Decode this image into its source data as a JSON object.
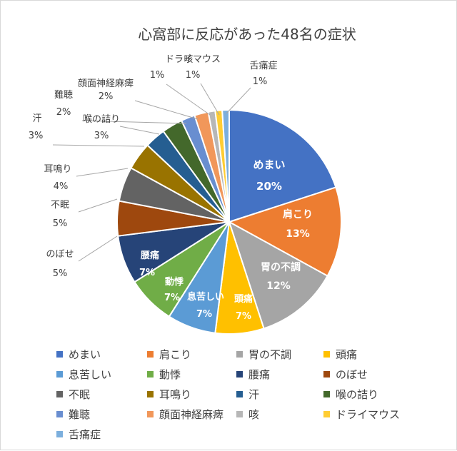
{
  "chart_data": {
    "type": "pie",
    "title": "心窩部に反応があった48名の症状",
    "categories": [
      "めまい",
      "肩こり",
      "胃の不調",
      "頭痛",
      "息苦しい",
      "動悸",
      "腰痛",
      "のぼせ",
      "不眠",
      "耳鳴り",
      "汗",
      "喉の詰り",
      "難聴",
      "顔面神経麻痺",
      "咳",
      "ドライマウス",
      "舌痛症"
    ],
    "values": [
      20,
      13,
      12,
      7,
      7,
      7,
      7,
      5,
      5,
      4,
      3,
      3,
      2,
      2,
      1,
      1,
      1
    ],
    "labels": [
      "20%",
      "13%",
      "12%",
      "7%",
      "7%",
      "7%",
      "7%",
      "5%",
      "5%",
      "4%",
      "3%",
      "3%",
      "2%",
      "2%",
      "1%",
      "1%",
      "1%"
    ],
    "colors": [
      "#4472C4",
      "#ED7D31",
      "#A5A5A5",
      "#FFC000",
      "#5B9BD5",
      "#70AD47",
      "#264478",
      "#9E480E",
      "#636363",
      "#997300",
      "#255E91",
      "#43682B",
      "#698ED0",
      "#F1975A",
      "#B7B7B7",
      "#FFCD33",
      "#7CAFDD"
    ],
    "legend_position": "bottom"
  }
}
